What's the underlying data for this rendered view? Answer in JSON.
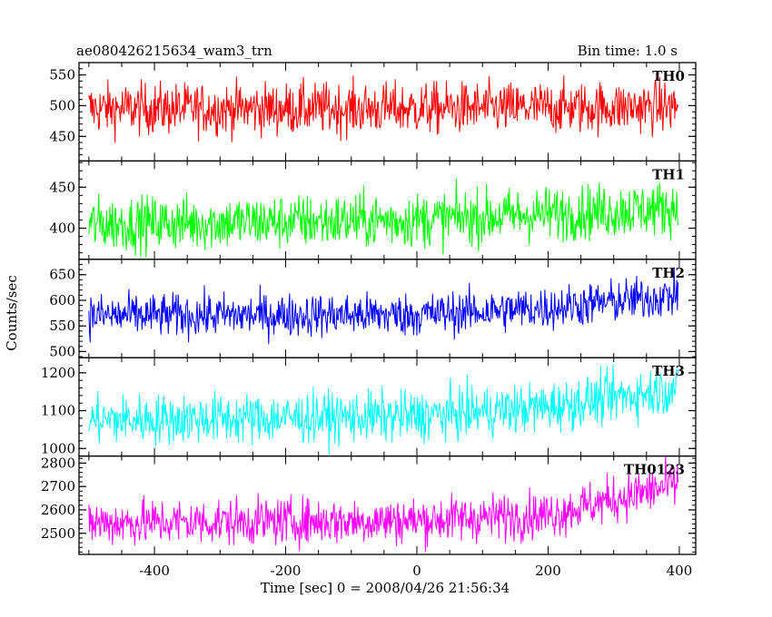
{
  "header": {
    "title": "ae080426215634_wam3_trn",
    "bin_time": "Bin time: 1.0 s"
  },
  "axes": {
    "ylabel": "Counts/sec",
    "xlabel": "Time [sec] 0 = 2008/04/26 21:56:34"
  },
  "chart_data": {
    "type": "line",
    "title": "ae080426215634_wam3_trn",
    "xlabel": "Time [sec] 0 = 2008/04/26 21:56:34",
    "ylabel": "Counts/sec",
    "xlim": [
      -515,
      425
    ],
    "x_ticks": [
      -400,
      -200,
      0,
      200,
      400
    ],
    "x_start": -500,
    "x_end": 398,
    "bin_time": 1.0,
    "grid": false,
    "panels": [
      {
        "name": "TH0",
        "color": "#ff0000",
        "ylim": [
          410,
          570
        ],
        "yticks": [
          450,
          500,
          550
        ],
        "trend": [
          [
            -500,
            495
          ],
          [
            0,
            495
          ],
          [
            398,
            498
          ]
        ],
        "noise_amplitude": 38
      },
      {
        "name": "TH1",
        "color": "#00ff00",
        "ylim": [
          362,
          482
        ],
        "yticks": [
          400,
          450
        ],
        "trend": [
          [
            -500,
            405
          ],
          [
            0,
            410
          ],
          [
            398,
            425
          ]
        ],
        "noise_amplitude": 30
      },
      {
        "name": "TH2",
        "color": "#0000ff",
        "ylim": [
          488,
          680
        ],
        "yticks": [
          500,
          550,
          600,
          650
        ],
        "trend": [
          [
            -500,
            570
          ],
          [
            0,
            572
          ],
          [
            200,
            585
          ],
          [
            398,
            610
          ]
        ],
        "noise_amplitude": 38
      },
      {
        "name": "TH3",
        "color": "#00ffff",
        "ylim": [
          980,
          1240
        ],
        "yticks": [
          1000,
          1100,
          1200
        ],
        "trend": [
          [
            -500,
            1075
          ],
          [
            0,
            1085
          ],
          [
            200,
            1110
          ],
          [
            398,
            1160
          ]
        ],
        "noise_amplitude": 60
      },
      {
        "name": "TH0123",
        "color": "#ff00ff",
        "ylim": [
          2410,
          2830
        ],
        "yticks": [
          2500,
          2600,
          2700,
          2800
        ],
        "trend": [
          [
            -500,
            2545
          ],
          [
            0,
            2555
          ],
          [
            200,
            2580
          ],
          [
            398,
            2710
          ]
        ],
        "noise_amplitude": 90
      }
    ]
  }
}
